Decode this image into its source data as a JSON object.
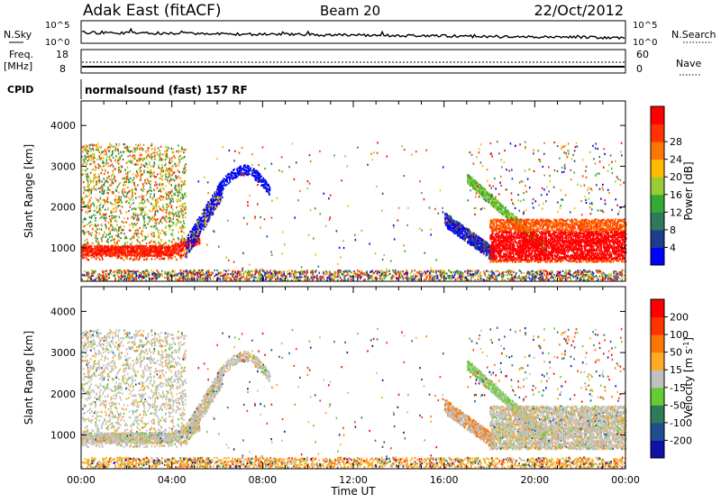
{
  "header": {
    "station": "Adak East (fitACF)",
    "beam": "Beam 20",
    "date": "22/Oct/2012"
  },
  "noise_panel": {
    "left_label": "N.Sky",
    "right_label": "N.Search",
    "left_ticks": [
      "10^5",
      "10^0"
    ],
    "right_ticks": [
      "10^5",
      "10^0"
    ]
  },
  "freq_panel": {
    "left_label_1": "Freq.",
    "left_label_2": "[MHz]",
    "left_ticks": [
      "18",
      "8"
    ],
    "right_label": "Nave",
    "right_ticks": [
      "60",
      "0"
    ]
  },
  "cpid": {
    "label": "CPID",
    "value": "normalsound (fast) 157 RF"
  },
  "colors": {
    "power_scale": [
      "#0000ff",
      "#1f3d8f",
      "#2e7a5a",
      "#33aa33",
      "#99cc33",
      "#ffbb00",
      "#ff7700",
      "#ff3300",
      "#ff0000"
    ],
    "velocity_scale": [
      "#1111aa",
      "#1f4f8f",
      "#2e7a5a",
      "#66cc33",
      "#c0c0c0",
      "#ffaa22",
      "#ff7700",
      "#ff3300",
      "#ff0000"
    ]
  },
  "chart_data": [
    {
      "type": "heatmap",
      "title": "Power",
      "xlabel": "Time UT",
      "ylabel": "Slant Range [km]",
      "xlim_hours": [
        0,
        24
      ],
      "x_tick_labels": [
        "00:00",
        "04:00",
        "08:00",
        "12:00",
        "16:00",
        "20:00",
        "00:00"
      ],
      "ylim": [
        180,
        4600
      ],
      "y_tick_labels": [
        "1000",
        "2000",
        "3000",
        "4000"
      ],
      "colorbar_label": "Power [dB]",
      "colorbar_ticks": [
        "4",
        "8",
        "12",
        "16",
        "20",
        "24",
        "28"
      ],
      "scale_range": [
        0,
        32
      ]
    },
    {
      "type": "heatmap",
      "title": "Velocity",
      "xlabel": "Time UT",
      "ylabel": "Slant Range [km]",
      "xlim_hours": [
        0,
        24
      ],
      "x_tick_labels": [
        "00:00",
        "04:00",
        "08:00",
        "12:00",
        "16:00",
        "20:00",
        "00:00"
      ],
      "ylim": [
        180,
        4600
      ],
      "y_tick_labels": [
        "1000",
        "2000",
        "3000",
        "4000"
      ],
      "colorbar_label": "Velocity [m s^-1]",
      "colorbar_ticks": [
        "200",
        "100",
        "50",
        "15",
        "-15",
        "-50",
        "-100",
        "-200"
      ],
      "scale_range": [
        -250,
        250
      ]
    }
  ],
  "xaxis": {
    "tick_labels": [
      "00:00",
      "04:00",
      "08:00",
      "12:00",
      "16:00",
      "20:00",
      "00:00"
    ],
    "label": "Time UT"
  }
}
